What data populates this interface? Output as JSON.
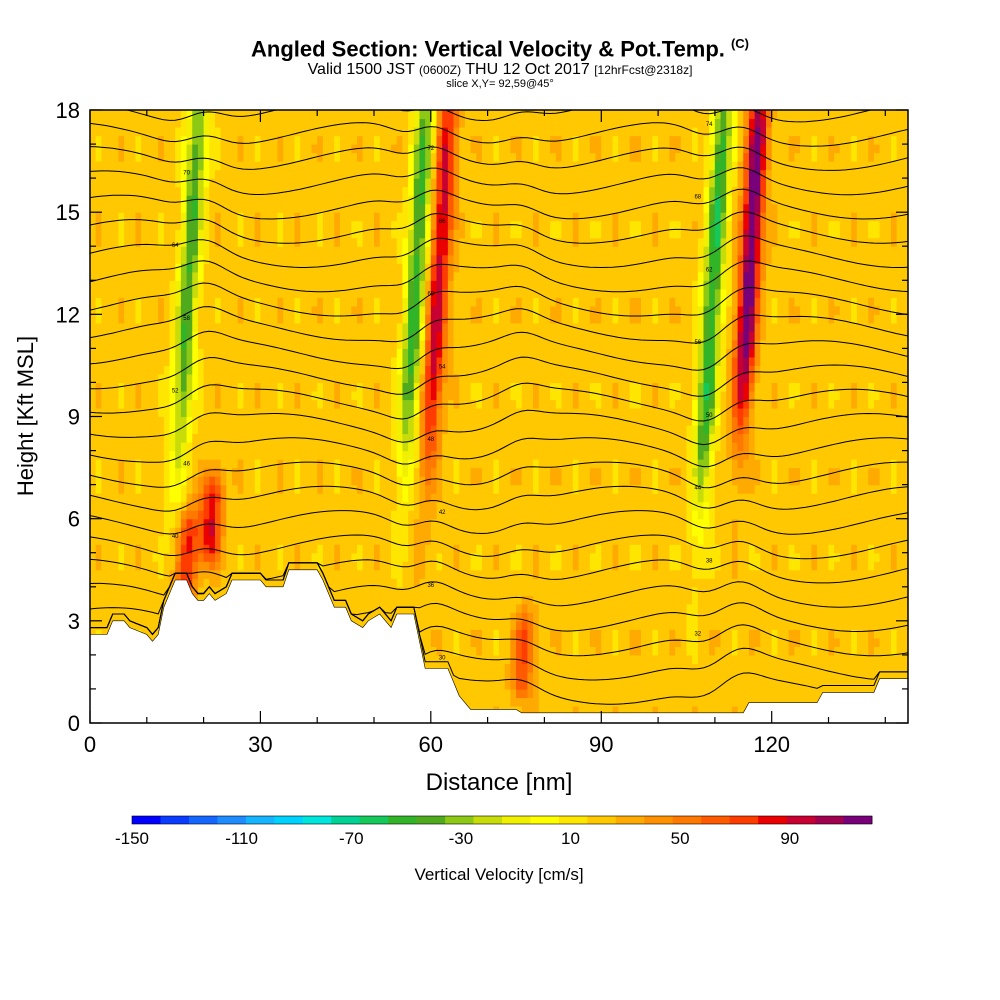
{
  "header": {
    "title": "Angled Section: Vertical Velocity & Pot.Temp.",
    "title_tag": "(C)",
    "valid_prefix": "Valid 1500 JST",
    "valid_utc": "(0600Z)",
    "valid_date": "THU 12 Oct 2017",
    "forecast_info": "[12hrFcst@2318z]",
    "slice_info": "slice X,Y= 92,59@45°"
  },
  "chart_data": {
    "type": "heatmap",
    "xlabel": "Distance [nm]",
    "ylabel": "Height [Kft MSL]",
    "xlim": [
      0,
      144
    ],
    "ylim": [
      0,
      18
    ],
    "x_ticks": [
      "0",
      "30",
      "60",
      "90",
      "120"
    ],
    "x_tick_values": [
      0,
      30,
      60,
      90,
      120
    ],
    "y_ticks": [
      "0",
      "3",
      "6",
      "9",
      "12",
      "15",
      "18"
    ],
    "y_tick_values": [
      0,
      3,
      6,
      9,
      12,
      15,
      18
    ],
    "background_velocity_cms": 15,
    "updraft_bands": [
      {
        "x": 17,
        "y_bottom": 4,
        "y_top": 6,
        "peak_cms": 70
      },
      {
        "x": 21,
        "y_bottom": 5,
        "y_top": 7,
        "peak_cms": 80
      },
      {
        "x": 60,
        "y_bottom": 9,
        "y_top": 18,
        "peak_cms": 85
      },
      {
        "x": 76,
        "y_bottom": 1,
        "y_top": 3,
        "peak_cms": 60
      },
      {
        "x": 115,
        "y_bottom": 10,
        "y_top": 18,
        "peak_cms": 110
      }
    ],
    "downdraft_bands": [
      {
        "x": 16,
        "y_bottom": 9,
        "y_top": 18,
        "peak_cms": -50
      },
      {
        "x": 56,
        "y_bottom": 9,
        "y_top": 18,
        "peak_cms": -55
      },
      {
        "x": 108,
        "y_bottom": 8,
        "y_top": 18,
        "peak_cms": -60
      }
    ],
    "terrain_kft": [
      [
        0,
        2.6
      ],
      [
        3,
        2.6
      ],
      [
        4,
        3.0
      ],
      [
        6,
        3.0
      ],
      [
        7,
        2.8
      ],
      [
        10,
        2.6
      ],
      [
        11,
        2.4
      ],
      [
        12,
        2.6
      ],
      [
        13,
        3.4
      ],
      [
        14,
        3.8
      ],
      [
        15,
        4.2
      ],
      [
        17,
        4.2
      ],
      [
        18,
        3.8
      ],
      [
        19,
        3.6
      ],
      [
        20,
        3.6
      ],
      [
        21,
        3.8
      ],
      [
        22,
        3.6
      ],
      [
        24,
        3.8
      ],
      [
        25,
        4.2
      ],
      [
        28,
        4.2
      ],
      [
        30,
        4.2
      ],
      [
        31,
        4.0
      ],
      [
        34,
        4.0
      ],
      [
        35,
        4.5
      ],
      [
        40,
        4.5
      ],
      [
        41,
        4.2
      ],
      [
        42,
        3.8
      ],
      [
        43,
        3.4
      ],
      [
        45,
        3.4
      ],
      [
        46,
        3.0
      ],
      [
        48,
        2.8
      ],
      [
        49,
        3.0
      ],
      [
        51,
        3.2
      ],
      [
        52,
        3.0
      ],
      [
        53,
        2.8
      ],
      [
        54,
        3.2
      ],
      [
        57,
        3.2
      ],
      [
        58,
        2.4
      ],
      [
        59,
        1.6
      ],
      [
        63,
        1.6
      ],
      [
        64,
        1.2
      ],
      [
        65,
        0.8
      ],
      [
        67,
        0.4
      ],
      [
        75,
        0.4
      ],
      [
        76,
        0.3
      ],
      [
        79,
        0.3
      ],
      [
        115,
        0.3
      ],
      [
        116,
        0.6
      ],
      [
        128,
        0.6
      ],
      [
        129,
        0.9
      ],
      [
        138,
        0.9
      ],
      [
        139,
        1.3
      ],
      [
        144,
        1.3
      ]
    ],
    "theta_contours_K": [
      "28",
      "30",
      "32",
      "34",
      "36",
      "38",
      "40",
      "42",
      "44",
      "46",
      "48",
      "50",
      "52",
      "54",
      "56",
      "58",
      "60",
      "62",
      "64",
      "66",
      "68",
      "70",
      "72",
      "74",
      "76"
    ],
    "colorbar": {
      "label": "Vertical Velocity [cm/s]",
      "min": -150,
      "max": 110,
      "step": 10,
      "tick_labels": [
        "-150",
        "-110",
        "-70",
        "-30",
        "10",
        "50",
        "90"
      ],
      "tick_values": [
        -150,
        -110,
        -70,
        -30,
        10,
        50,
        90
      ],
      "colors": [
        "#0000ff",
        "#0a3cff",
        "#1466ff",
        "#1e8cff",
        "#14b4ff",
        "#00d2ff",
        "#00e6dc",
        "#00d296",
        "#14c85a",
        "#32b428",
        "#50aa1e",
        "#8cc814",
        "#c8dc0a",
        "#f0f000",
        "#ffff00",
        "#ffe600",
        "#ffc800",
        "#ffaa00",
        "#ff9100",
        "#ff7800",
        "#ff5a00",
        "#ff3c00",
        "#eb0000",
        "#c80032",
        "#a00050",
        "#780078"
      ]
    }
  }
}
